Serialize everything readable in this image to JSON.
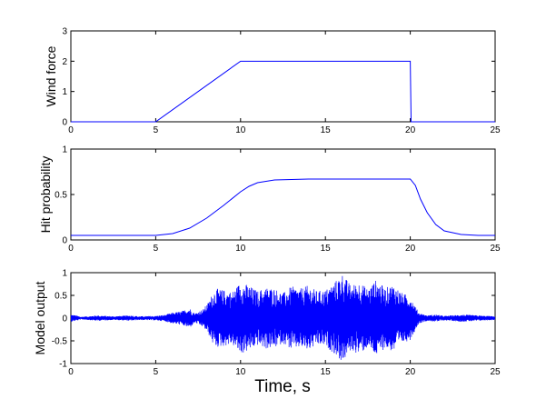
{
  "chart_data": [
    {
      "type": "line",
      "ylabel": "Wind force",
      "xlim": [
        0,
        25
      ],
      "ylim": [
        0,
        3
      ],
      "xticks": [
        0,
        5,
        10,
        15,
        20,
        25
      ],
      "yticks": [
        0,
        1,
        2,
        3
      ],
      "series": [
        {
          "color": "#0000ff",
          "x": [
            0,
            5,
            10,
            20,
            20.05,
            25
          ],
          "y": [
            0,
            0,
            2,
            2,
            0,
            0
          ]
        }
      ]
    },
    {
      "type": "line",
      "ylabel": "Hit probability",
      "xlim": [
        0,
        25
      ],
      "ylim": [
        0,
        1
      ],
      "xticks": [
        0,
        5,
        10,
        15,
        20,
        25
      ],
      "yticks": [
        0,
        0.5,
        1
      ],
      "series": [
        {
          "color": "#0000ff",
          "x": [
            0,
            5,
            6,
            7,
            8,
            9,
            10,
            10.5,
            11,
            12,
            13,
            14,
            15,
            16,
            17,
            18,
            19,
            20,
            20.3,
            20.6,
            21,
            21.5,
            22,
            23,
            24,
            25
          ],
          "y": [
            0.05,
            0.05,
            0.07,
            0.13,
            0.24,
            0.38,
            0.53,
            0.59,
            0.63,
            0.66,
            0.665,
            0.67,
            0.67,
            0.67,
            0.67,
            0.67,
            0.67,
            0.67,
            0.6,
            0.45,
            0.3,
            0.17,
            0.1,
            0.06,
            0.05,
            0.05
          ]
        }
      ]
    },
    {
      "type": "line",
      "ylabel": "Model output",
      "xlabel": "Time, s",
      "xlim": [
        0,
        25
      ],
      "ylim": [
        -1,
        1
      ],
      "xticks": [
        0,
        5,
        10,
        15,
        20,
        25
      ],
      "yticks": [
        -1,
        -0.5,
        0,
        0.5,
        1
      ],
      "series": [
        {
          "color": "#0000ff",
          "envelope_x": [
            0,
            0.3,
            0.6,
            1.0,
            1.5,
            2.0,
            2.5,
            3.0,
            3.5,
            4.0,
            5.0,
            5.5,
            6.0,
            6.5,
            7.0,
            7.3,
            7.8,
            8.1,
            8.4,
            8.6,
            9.0,
            9.5,
            10.0,
            10.5,
            11.0,
            11.5,
            12.0,
            12.5,
            13.0,
            13.5,
            14.0,
            14.5,
            15.0,
            15.5,
            16.0,
            16.5,
            17.0,
            17.5,
            18.0,
            18.5,
            19.0,
            19.5,
            20.0,
            20.5,
            21.0,
            21.5,
            22.0,
            22.5,
            23.0,
            23.5,
            24.0,
            24.5,
            25.0
          ],
          "envelope_y": [
            0.08,
            0.06,
            0.03,
            0.04,
            0.06,
            0.05,
            0.04,
            0.05,
            0.06,
            0.04,
            0.05,
            0.07,
            0.12,
            0.15,
            0.22,
            0.1,
            0.2,
            0.35,
            0.6,
            0.65,
            0.62,
            0.58,
            0.8,
            0.72,
            0.6,
            0.68,
            0.66,
            0.55,
            0.7,
            0.65,
            0.72,
            0.6,
            0.62,
            0.78,
            0.98,
            0.72,
            0.8,
            0.65,
            0.85,
            0.66,
            0.75,
            0.56,
            0.48,
            0.12,
            0.06,
            0.08,
            0.05,
            0.06,
            0.08,
            0.07,
            0.06,
            0.05,
            0.04
          ]
        }
      ]
    }
  ]
}
